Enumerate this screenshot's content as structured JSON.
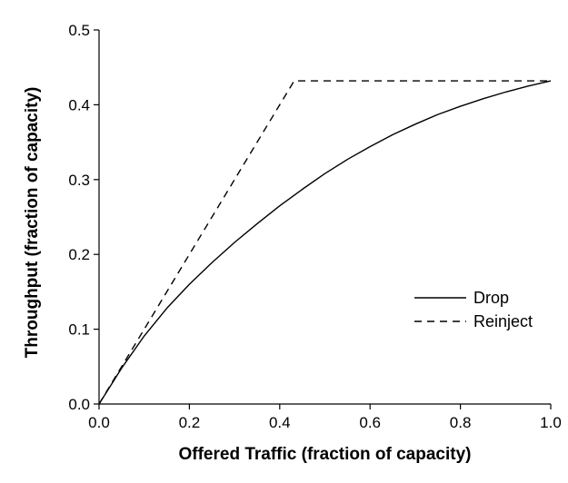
{
  "chart_data": {
    "type": "line",
    "title": "",
    "xlabel": "Offered Traffic (fraction of capacity)",
    "ylabel": "Throughput (fraction of capacity)",
    "xlim": [
      0.0,
      1.0
    ],
    "ylim": [
      0.0,
      0.5
    ],
    "x_ticks": [
      "0.0",
      "0.2",
      "0.4",
      "0.6",
      "0.8",
      "1.0"
    ],
    "y_ticks": [
      "0.0",
      "0.1",
      "0.2",
      "0.3",
      "0.4",
      "0.5"
    ],
    "grid": false,
    "legend_position": "right",
    "series": [
      {
        "name": "Drop",
        "style": "solid",
        "color": "#000000",
        "x": [
          0.0,
          0.05,
          0.1,
          0.15,
          0.2,
          0.25,
          0.3,
          0.35,
          0.4,
          0.45,
          0.5,
          0.55,
          0.6,
          0.65,
          0.7,
          0.75,
          0.8,
          0.85,
          0.9,
          0.95,
          1.0
        ],
        "y": [
          0.0,
          0.048,
          0.091,
          0.128,
          0.16,
          0.189,
          0.216,
          0.241,
          0.265,
          0.287,
          0.308,
          0.327,
          0.344,
          0.36,
          0.374,
          0.387,
          0.398,
          0.408,
          0.417,
          0.425,
          0.432
        ]
      },
      {
        "name": "Reinject",
        "style": "dashed",
        "color": "#000000",
        "x": [
          0.0,
          0.432,
          1.0
        ],
        "y": [
          0.0,
          0.432,
          0.432
        ]
      }
    ]
  }
}
